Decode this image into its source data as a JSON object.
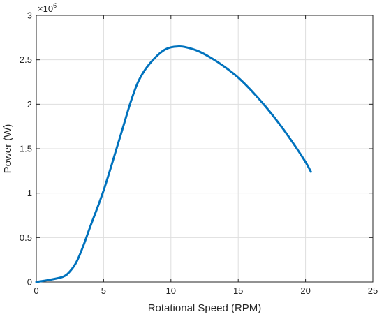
{
  "chart_data": {
    "type": "line",
    "title": "",
    "xlabel": "Rotational Speed (RPM)",
    "ylabel": "Power (W)",
    "xlim": [
      0,
      25
    ],
    "ylim": [
      0,
      3000000
    ],
    "xticks": [
      0,
      5,
      10,
      15,
      20,
      25
    ],
    "yticks": [
      0,
      500000,
      1000000,
      1500000,
      2000000,
      2500000,
      3000000
    ],
    "xtick_labels": [
      "0",
      "5",
      "10",
      "15",
      "20",
      "25"
    ],
    "ytick_labels": [
      "0",
      "0.5",
      "1",
      "1.5",
      "2",
      "2.5",
      "3"
    ],
    "y_multiplier": {
      "base": "×10",
      "exponent": "6"
    },
    "grid": true,
    "series": [
      {
        "color": "#0072bd",
        "x": [
          0,
          1,
          2,
          2.5,
          3,
          3.5,
          4,
          5,
          6,
          6.5,
          7,
          7.5,
          8,
          8.5,
          9,
          9.5,
          10,
          10.5,
          11,
          12,
          13,
          14,
          15,
          16,
          17,
          18,
          19,
          20,
          20.4
        ],
        "y": [
          0,
          25000,
          60000,
          120000,
          230000,
          410000,
          620000,
          1030000,
          1520000,
          1770000,
          2020000,
          2230000,
          2370000,
          2470000,
          2550000,
          2610000,
          2640000,
          2650000,
          2645000,
          2600000,
          2520000,
          2420000,
          2300000,
          2150000,
          1980000,
          1790000,
          1580000,
          1350000,
          1240000
        ]
      }
    ]
  }
}
